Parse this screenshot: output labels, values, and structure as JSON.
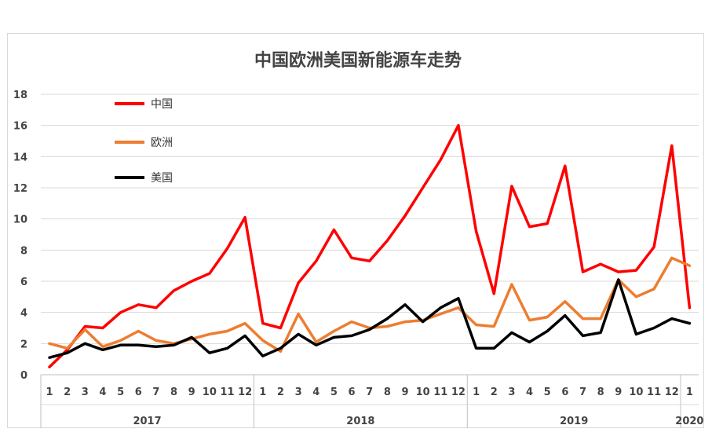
{
  "chart_data": {
    "type": "line",
    "title": "中国欧洲美国新能源车走势",
    "ylim": [
      0,
      18
    ],
    "yticks": [
      "0",
      "2",
      "4",
      "6",
      "8",
      "10",
      "12",
      "14",
      "16",
      "18"
    ],
    "categories": [
      "1",
      "2",
      "3",
      "4",
      "5",
      "6",
      "7",
      "8",
      "9",
      "10",
      "11",
      "12",
      "1",
      "2",
      "3",
      "4",
      "5",
      "6",
      "7",
      "8",
      "9",
      "10",
      "11",
      "12",
      "1",
      "2",
      "3",
      "4",
      "5",
      "6",
      "7",
      "8",
      "9",
      "10",
      "11",
      "12",
      "1"
    ],
    "years": [
      "2017",
      "2018",
      "2019",
      "2020"
    ],
    "grid": true,
    "legend_position": "top-left",
    "series": [
      {
        "name": "中国",
        "color": "#ff0000",
        "values": [
          0.5,
          1.6,
          3.1,
          3.0,
          4.0,
          4.5,
          4.3,
          5.4,
          6.0,
          6.5,
          8.1,
          10.1,
          3.3,
          3.0,
          5.9,
          7.3,
          9.3,
          7.5,
          7.3,
          8.6,
          10.2,
          12.0,
          13.8,
          16.0,
          9.2,
          5.2,
          12.1,
          9.5,
          9.7,
          13.4,
          6.6,
          7.1,
          6.6,
          6.7,
          8.2,
          14.7,
          4.3
        ]
      },
      {
        "name": "欧洲",
        "color": "#ed7d31",
        "values": [
          2.0,
          1.7,
          2.9,
          1.8,
          2.2,
          2.8,
          2.2,
          2.0,
          2.3,
          2.6,
          2.8,
          3.3,
          2.2,
          1.5,
          3.9,
          2.1,
          2.8,
          3.4,
          3.0,
          3.1,
          3.4,
          3.5,
          3.9,
          4.3,
          3.2,
          3.1,
          5.8,
          3.5,
          3.7,
          4.7,
          3.6,
          3.6,
          6.1,
          5.0,
          5.5,
          7.5,
          7.0
        ]
      },
      {
        "name": "美国",
        "color": "#000000",
        "values": [
          1.1,
          1.4,
          2.0,
          1.6,
          1.9,
          1.9,
          1.8,
          1.9,
          2.4,
          1.4,
          1.7,
          2.5,
          1.2,
          1.7,
          2.6,
          1.9,
          2.4,
          2.5,
          2.9,
          3.6,
          4.5,
          3.4,
          4.3,
          4.9,
          1.7,
          1.7,
          2.7,
          2.1,
          2.8,
          3.8,
          2.5,
          2.7,
          6.1,
          2.6,
          3.0,
          3.6,
          3.3
        ]
      }
    ]
  }
}
